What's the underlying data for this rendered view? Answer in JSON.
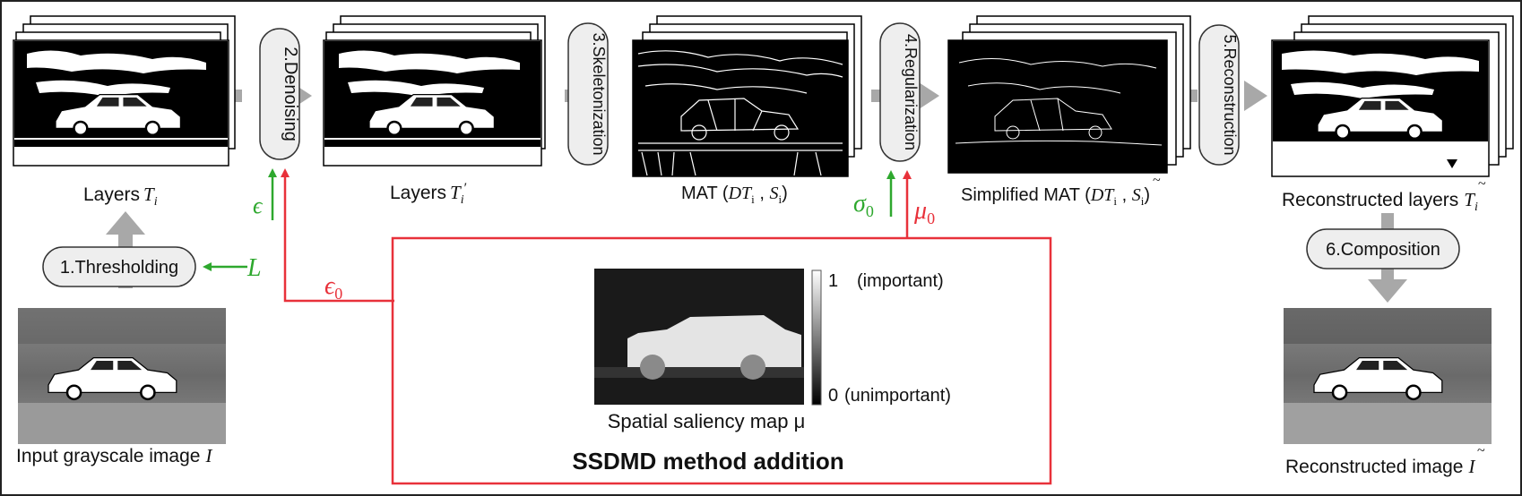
{
  "stages": {
    "s1": "1.Thresholding",
    "s2": "2.Denoising",
    "s3": "3.Skeletonization",
    "s4": "4.Regularization",
    "s5": "5.Reconstruction",
    "s6": "6.Composition"
  },
  "labels": {
    "layers_prefix": "Layers",
    "layers_sym": "T",
    "layers_sub": "i",
    "layers_prime_prefix": "Layers",
    "mat_prefix": "MAT (",
    "mat_dt": "DT",
    "mat_dt_sub": "i",
    "mat_s": "S",
    "mat_s_sub": "i",
    "mat_suffix": ")",
    "smat_prefix": "Simplified MAT (",
    "recon_layers_prefix": "Reconstructed layers",
    "input_prefix": "Input grayscale image",
    "input_sym": "I",
    "recon_image_prefix": "Reconstructed image",
    "recon_image_sym": "I"
  },
  "params": {
    "epsilon": "ϵ",
    "epsilon0": "ϵ",
    "epsilon0_sub": "0",
    "L": "L",
    "sigma0": "σ",
    "sigma0_sub": "0",
    "mu0": "μ",
    "mu0_sub": "0"
  },
  "ssdmd": {
    "caption": "SSDMD method addition",
    "map_label": "Spatial saliency map μ",
    "scale_top_num": "1",
    "scale_top_text": "(important)",
    "scale_bottom_num": "0",
    "scale_bottom_text": "(unimportant)"
  },
  "colors": {
    "green": "#2ea82e",
    "red": "#e8313a",
    "arrow_gray": "#a8a8a8",
    "pill_fill": "#eeeeee"
  }
}
